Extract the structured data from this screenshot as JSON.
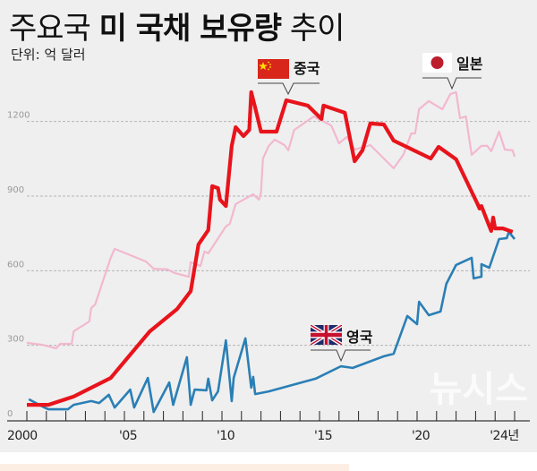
{
  "title": {
    "prefix": "주요국",
    "bold": "미 국채 보유량",
    "suffix": "추이"
  },
  "subtitle": "단위: 억 달러",
  "watermark": "뉴시스",
  "chart_data": {
    "type": "line",
    "title": "주요국 미 국채 보유량 추이",
    "unit": "단위: 억 달러",
    "ylim": [
      0,
      1350
    ],
    "xlim": [
      2000,
      2025.2
    ],
    "y_ticks": [
      0,
      300,
      600,
      900,
      1200
    ],
    "y_tick_labels": [
      "0",
      "300",
      "600",
      "900",
      "1200"
    ],
    "x_tick_labels": [
      {
        "year": 2000,
        "label": "2000"
      },
      {
        "year": 2005,
        "label": "'05"
      },
      {
        "year": 2010,
        "label": "'10"
      },
      {
        "year": 2015,
        "label": "'15"
      },
      {
        "year": 2020,
        "label": "'20"
      },
      {
        "year": 2024,
        "label": "'24년"
      }
    ],
    "grid": true,
    "series": [
      {
        "name": "일본",
        "color": "#f2b8cf",
        "flag": "japan-flag",
        "points": [
          [
            2000.0,
            310
          ],
          [
            2000.8,
            302
          ],
          [
            2001.5,
            288
          ],
          [
            2001.7,
            306
          ],
          [
            2002.3,
            306
          ],
          [
            2002.4,
            356
          ],
          [
            2003.2,
            396
          ],
          [
            2003.3,
            450
          ],
          [
            2003.5,
            464
          ],
          [
            2004.3,
            652
          ],
          [
            2004.5,
            688
          ],
          [
            2006.1,
            637
          ],
          [
            2006.5,
            608
          ],
          [
            2007.2,
            605
          ],
          [
            2007.6,
            590
          ],
          [
            2008.3,
            576
          ],
          [
            2008.4,
            634
          ],
          [
            2008.9,
            619
          ],
          [
            2009.1,
            677
          ],
          [
            2009.3,
            670
          ],
          [
            2010.2,
            778
          ],
          [
            2010.4,
            788
          ],
          [
            2010.7,
            868
          ],
          [
            2011.6,
            907
          ],
          [
            2011.9,
            886
          ],
          [
            2012.0,
            914
          ],
          [
            2012.1,
            1051
          ],
          [
            2012.4,
            1102
          ],
          [
            2012.7,
            1127
          ],
          [
            2013.2,
            1105
          ],
          [
            2013.4,
            1084
          ],
          [
            2013.7,
            1166
          ],
          [
            2014.7,
            1220
          ],
          [
            2015.6,
            1184
          ],
          [
            2016.0,
            1112
          ],
          [
            2016.4,
            1138
          ],
          [
            2016.8,
            1087
          ],
          [
            2017.6,
            1105
          ],
          [
            2018.8,
            1012
          ],
          [
            2019.3,
            1066
          ],
          [
            2019.7,
            1152
          ],
          [
            2019.9,
            1152
          ],
          [
            2020.1,
            1249
          ],
          [
            2020.6,
            1282
          ],
          [
            2021.3,
            1249
          ],
          [
            2021.7,
            1310
          ],
          [
            2022.0,
            1318
          ],
          [
            2022.2,
            1213
          ],
          [
            2022.5,
            1220
          ],
          [
            2022.8,
            1066
          ],
          [
            2023.3,
            1102
          ],
          [
            2023.6,
            1102
          ],
          [
            2023.8,
            1080
          ],
          [
            2024.2,
            1159
          ],
          [
            2024.5,
            1087
          ],
          [
            2024.9,
            1084
          ],
          [
            2025.0,
            1058
          ]
        ]
      },
      {
        "name": "영국",
        "color": "#2a7fb5",
        "flag": "uk-flag",
        "points": [
          [
            2000.1,
            83
          ],
          [
            2000.9,
            50
          ],
          [
            2001.1,
            43
          ],
          [
            2002.1,
            43
          ],
          [
            2002.4,
            61
          ],
          [
            2003.3,
            76
          ],
          [
            2003.7,
            68
          ],
          [
            2004.2,
            101
          ],
          [
            2004.5,
            50
          ],
          [
            2005.3,
            122
          ],
          [
            2005.5,
            50
          ],
          [
            2006.2,
            169
          ],
          [
            2006.5,
            32
          ],
          [
            2007.3,
            151
          ],
          [
            2007.5,
            61
          ],
          [
            2008.2,
            252
          ],
          [
            2008.4,
            61
          ],
          [
            2008.6,
            122
          ],
          [
            2009.2,
            119
          ],
          [
            2009.3,
            166
          ],
          [
            2009.5,
            79
          ],
          [
            2009.8,
            115
          ],
          [
            2010.2,
            320
          ],
          [
            2010.5,
            76
          ],
          [
            2010.6,
            169
          ],
          [
            2011.2,
            328
          ],
          [
            2011.5,
            130
          ],
          [
            2011.6,
            173
          ],
          [
            2011.7,
            104
          ],
          [
            2012.4,
            115
          ],
          [
            2014.8,
            166
          ],
          [
            2016.1,
            216
          ],
          [
            2016.7,
            209
          ],
          [
            2018.3,
            256
          ],
          [
            2018.8,
            266
          ],
          [
            2019.5,
            418
          ],
          [
            2020.0,
            385
          ],
          [
            2020.1,
            475
          ],
          [
            2020.6,
            421
          ],
          [
            2021.2,
            436
          ],
          [
            2021.5,
            547
          ],
          [
            2022.0,
            623
          ],
          [
            2022.8,
            652
          ],
          [
            2022.9,
            569
          ],
          [
            2023.3,
            576
          ],
          [
            2023.3,
            626
          ],
          [
            2023.7,
            612
          ],
          [
            2024.2,
            727
          ],
          [
            2024.6,
            731
          ],
          [
            2024.7,
            756
          ],
          [
            2025.0,
            727
          ]
        ]
      },
      {
        "name": "중국",
        "color": "#e8141c",
        "flag": "china-flag",
        "points": [
          [
            2000.0,
            61
          ],
          [
            2001.1,
            61
          ],
          [
            2002.4,
            94
          ],
          [
            2004.3,
            169
          ],
          [
            2006.3,
            356
          ],
          [
            2007.7,
            446
          ],
          [
            2008.4,
            518
          ],
          [
            2008.8,
            706
          ],
          [
            2009.3,
            763
          ],
          [
            2009.5,
            940
          ],
          [
            2009.8,
            932
          ],
          [
            2009.9,
            886
          ],
          [
            2010.2,
            860
          ],
          [
            2010.5,
            1102
          ],
          [
            2010.7,
            1177
          ],
          [
            2011.1,
            1141
          ],
          [
            2011.4,
            1166
          ],
          [
            2011.5,
            1318
          ],
          [
            2011.7,
            1256
          ],
          [
            2012.0,
            1159
          ],
          [
            2012.8,
            1159
          ],
          [
            2013.3,
            1285
          ],
          [
            2014.4,
            1264
          ],
          [
            2015.1,
            1210
          ],
          [
            2015.2,
            1264
          ],
          [
            2016.3,
            1235
          ],
          [
            2016.8,
            1040
          ],
          [
            2017.2,
            1084
          ],
          [
            2017.6,
            1192
          ],
          [
            2018.3,
            1188
          ],
          [
            2018.8,
            1123
          ],
          [
            2020.7,
            1051
          ],
          [
            2021.1,
            1098
          ],
          [
            2022.0,
            1048
          ],
          [
            2023.1,
            868
          ],
          [
            2023.2,
            850
          ],
          [
            2023.3,
            860
          ],
          [
            2023.8,
            760
          ],
          [
            2023.9,
            814
          ],
          [
            2024.0,
            770
          ],
          [
            2024.4,
            770
          ],
          [
            2024.9,
            756
          ]
        ]
      }
    ]
  }
}
